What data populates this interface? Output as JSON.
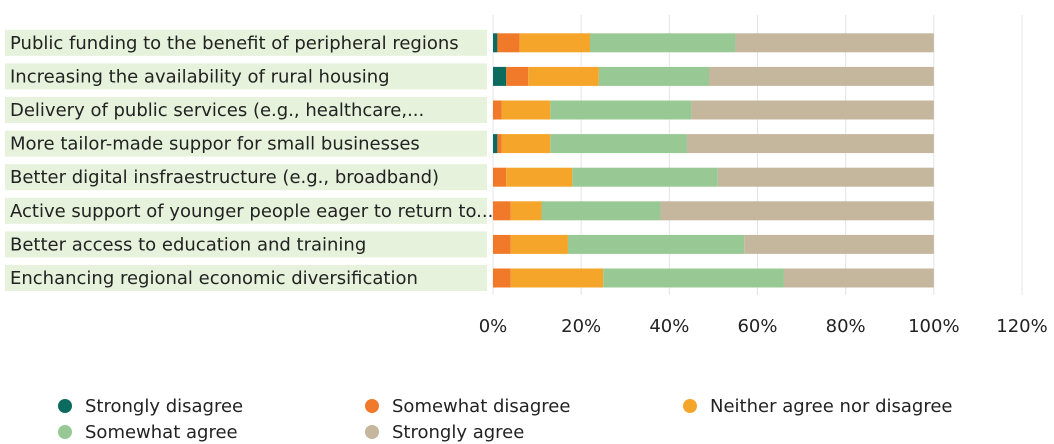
{
  "chart_data": {
    "type": "bar",
    "orientation": "horizontal",
    "stacked": true,
    "categories": [
      "Public funding to the benefit of peripheral regions",
      "Increasing the availability of rural housing",
      "Delivery of public services (e.g., healthcare,...",
      "More tailor-made suppor for small businesses",
      "Better digital insfraestructure (e.g., broadband)",
      "Active support of younger people eager to return to...",
      "Better access to education and training",
      "Enchancing regional economic diversification"
    ],
    "series": [
      {
        "name": "Strongly disagree",
        "color": "#0b6b5e",
        "values": [
          1,
          3,
          0,
          1,
          0,
          0,
          0,
          0
        ]
      },
      {
        "name": "Somewhat disagree",
        "color": "#f07a2a",
        "values": [
          5,
          5,
          2,
          1,
          3,
          4,
          4,
          4
        ]
      },
      {
        "name": "Neither agree nor disagree",
        "color": "#f5a52a",
        "values": [
          16,
          16,
          11,
          11,
          15,
          7,
          13,
          21
        ]
      },
      {
        "name": "Somewhat agree",
        "color": "#98c995",
        "values": [
          33,
          25,
          32,
          31,
          33,
          27,
          40,
          41
        ]
      },
      {
        "name": "Strongly agree",
        "color": "#c4b79e",
        "values": [
          45,
          51,
          55,
          56,
          49,
          62,
          43,
          34
        ]
      }
    ],
    "xlim": [
      0,
      120
    ],
    "xticks": [
      {
        "value": 0,
        "label": "0%"
      },
      {
        "value": 20,
        "label": "20%"
      },
      {
        "value": 40,
        "label": "40%"
      },
      {
        "value": 60,
        "label": "60%"
      },
      {
        "value": 80,
        "label": "80%"
      },
      {
        "value": 100,
        "label": "100%"
      },
      {
        "value": 120,
        "label": "120%"
      }
    ],
    "grid": true,
    "legend": "bottom"
  }
}
